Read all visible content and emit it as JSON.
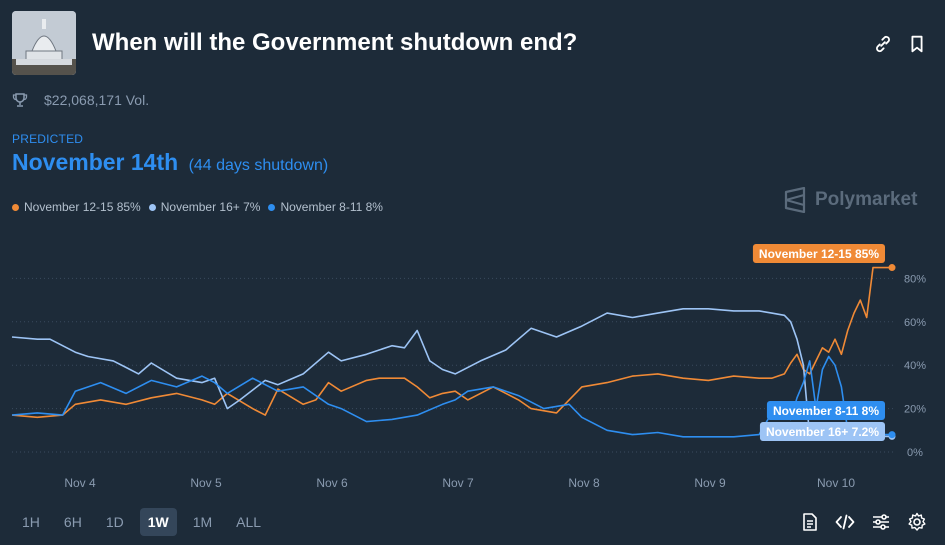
{
  "header": {
    "title": "When will the Government shutdown end?"
  },
  "volume": "$22,068,171 Vol.",
  "prediction": {
    "label": "PREDICTED",
    "outcome": "November 14th",
    "detail": "(44 days shutdown)"
  },
  "brand": "Polymarket",
  "legend": [
    {
      "text": "November 12-15 85%",
      "color": "#f08a36"
    },
    {
      "text": "November 16+ 7%",
      "color": "#9dc4f5"
    },
    {
      "text": "November 8-11 8%",
      "color": "#2e8ef0"
    }
  ],
  "end_labels": [
    {
      "text": "November 12-15 85%",
      "color": "#f08a36"
    },
    {
      "text": "November 8-11 8%",
      "color": "#2e8ef0"
    },
    {
      "text": "November 16+ 7.2%",
      "color": "#9dc4f5"
    }
  ],
  "time_ranges": [
    "1H",
    "6H",
    "1D",
    "1W",
    "1M",
    "ALL"
  ],
  "active_range": "1W",
  "chart_data": {
    "type": "line",
    "xlabels": [
      "Nov 4",
      "Nov 5",
      "Nov 6",
      "Nov 7",
      "Nov 8",
      "Nov 9",
      "Nov 10"
    ],
    "yticks": [
      "0%",
      "20%",
      "40%",
      "60%",
      "80%"
    ],
    "ylim": [
      0,
      100
    ],
    "xlim": [
      3.5,
      10.45
    ],
    "grid": "horizontal-dotted",
    "series": [
      {
        "name": "November 12-15",
        "color": "#f08a36",
        "x": [
          3.5,
          3.7,
          3.9,
          4.0,
          4.2,
          4.4,
          4.6,
          4.8,
          5.0,
          5.1,
          5.2,
          5.4,
          5.5,
          5.6,
          5.8,
          5.9,
          6.0,
          6.1,
          6.3,
          6.4,
          6.6,
          6.7,
          6.8,
          6.9,
          7.0,
          7.1,
          7.3,
          7.5,
          7.6,
          7.8,
          8.0,
          8.2,
          8.4,
          8.6,
          8.8,
          9.0,
          9.2,
          9.4,
          9.5,
          9.6,
          9.65,
          9.7,
          9.75,
          9.8,
          9.85,
          9.9,
          9.95,
          10.0,
          10.05,
          10.1,
          10.15,
          10.2,
          10.25,
          10.3,
          10.35,
          10.4,
          10.45
        ],
        "values": [
          17,
          16,
          17,
          22,
          24,
          22,
          25,
          27,
          24,
          22,
          27,
          20,
          17,
          29,
          22,
          24,
          32,
          28,
          33,
          34,
          34,
          30,
          25,
          27,
          28,
          24,
          30,
          24,
          20,
          18,
          30,
          32,
          35,
          36,
          34,
          33,
          35,
          34,
          34,
          36,
          41,
          45,
          38,
          36,
          42,
          48,
          46,
          52,
          45,
          56,
          64,
          70,
          62,
          85,
          85,
          85,
          85
        ]
      },
      {
        "name": "November 16+",
        "color": "#9dc4f5",
        "x": [
          3.5,
          3.7,
          3.8,
          4.0,
          4.1,
          4.3,
          4.5,
          4.6,
          4.8,
          5.0,
          5.1,
          5.2,
          5.3,
          5.5,
          5.6,
          5.8,
          6.0,
          6.1,
          6.3,
          6.5,
          6.6,
          6.7,
          6.8,
          6.9,
          7.0,
          7.2,
          7.4,
          7.6,
          7.8,
          8.0,
          8.2,
          8.4,
          8.6,
          8.8,
          9.0,
          9.2,
          9.4,
          9.5,
          9.6,
          9.65,
          9.7,
          9.75,
          9.8,
          9.9,
          10.0,
          10.1,
          10.2,
          10.3,
          10.45
        ],
        "values": [
          53,
          52,
          52,
          46,
          44,
          42,
          36,
          41,
          34,
          32,
          34,
          20,
          24,
          33,
          31,
          36,
          46,
          42,
          45,
          49,
          48,
          56,
          42,
          38,
          36,
          42,
          47,
          57,
          53,
          58,
          64,
          62,
          64,
          66,
          66,
          65,
          65,
          64,
          63,
          60,
          52,
          40,
          7,
          6,
          8,
          7,
          7,
          7.2,
          7.2
        ]
      },
      {
        "name": "November 8-11",
        "color": "#2e8ef0",
        "x": [
          3.5,
          3.7,
          3.9,
          4.0,
          4.2,
          4.4,
          4.6,
          4.8,
          5.0,
          5.1,
          5.2,
          5.4,
          5.6,
          5.8,
          6.0,
          6.1,
          6.3,
          6.5,
          6.7,
          6.9,
          7.0,
          7.1,
          7.3,
          7.5,
          7.7,
          7.9,
          8.0,
          8.2,
          8.4,
          8.6,
          8.8,
          9.0,
          9.2,
          9.4,
          9.5,
          9.6,
          9.65,
          9.7,
          9.75,
          9.8,
          9.85,
          9.9,
          9.95,
          10.0,
          10.05,
          10.1,
          10.2,
          10.3,
          10.45
        ],
        "values": [
          17,
          18,
          17,
          28,
          32,
          27,
          33,
          30,
          35,
          32,
          27,
          34,
          28,
          30,
          22,
          20,
          14,
          15,
          17,
          22,
          24,
          28,
          30,
          26,
          20,
          22,
          16,
          10,
          8,
          9,
          7,
          7,
          7,
          8,
          18,
          22,
          15,
          25,
          32,
          42,
          20,
          38,
          44,
          40,
          30,
          10,
          8,
          8,
          8
        ]
      }
    ]
  }
}
